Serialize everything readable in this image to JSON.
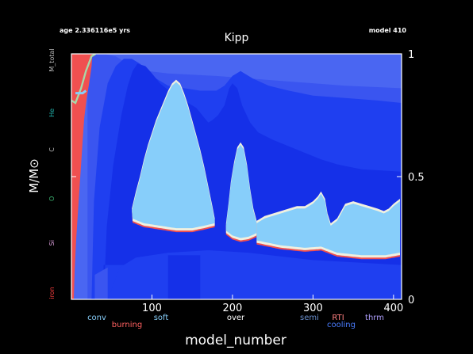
{
  "header": {
    "age_text": "age 2.336116e5 yrs",
    "title": "Kipp",
    "model_text": "model 410"
  },
  "chart_data": {
    "type": "area",
    "title": "Kipp",
    "xlabel": "model_number",
    "ylabel": "M/M⊙",
    "xlim": [
      0,
      410
    ],
    "ylim": [
      0,
      1
    ],
    "x_ticks": [
      100,
      200,
      300,
      400
    ],
    "y_ticks_right": [
      0,
      0.5,
      1
    ],
    "legend": {
      "placement": "bottom",
      "items": [
        {
          "label": "conv",
          "color": "#87cefa"
        },
        {
          "label": "burning",
          "color": "#ff6060"
        },
        {
          "label": "soft",
          "color": "#87cefa"
        },
        {
          "label": "over",
          "color": "#ffffff"
        },
        {
          "label": "semi",
          "color": "#6a8fcf"
        },
        {
          "label": "RTI",
          "color": "#ff8080"
        },
        {
          "label": "cooling",
          "color": "#4a7dff"
        },
        {
          "label": "thrm",
          "color": "#b0a0ff"
        }
      ]
    },
    "left_labels": [
      {
        "label": "M_total",
        "y": 1.0,
        "color": "#bbbbbb"
      },
      {
        "label": "He",
        "y": 0.76,
        "color": "#20b2aa"
      },
      {
        "label": "C",
        "y": 0.61,
        "color": "#bbbbbb"
      },
      {
        "label": "O",
        "y": 0.41,
        "color": "#3cb371"
      },
      {
        "label": "Si",
        "y": 0.23,
        "color": "#dda0dd"
      },
      {
        "label": "iron",
        "y": 0.0,
        "color": "#ff4040"
      }
    ],
    "colors": {
      "background": "#000000",
      "frame": "#ffffff",
      "burning": "#f05050",
      "layer_outer": "#4a66f2",
      "layer_mid": "#3a55f0",
      "layer_deep": "#1f3ff0",
      "core": "#1530e8",
      "convection": "#87cefa",
      "overshoot": "#f0f0e0",
      "he_line": "#a8d8a8"
    },
    "convective_regions": [
      {
        "name": "zone 1",
        "top": [
          [
            75,
            0.36
          ],
          [
            80,
            0.43
          ],
          [
            85,
            0.49
          ],
          [
            90,
            0.56
          ],
          [
            95,
            0.62
          ],
          [
            100,
            0.67
          ],
          [
            105,
            0.72
          ],
          [
            110,
            0.76
          ],
          [
            115,
            0.8
          ],
          [
            120,
            0.84
          ],
          [
            125,
            0.87
          ],
          [
            130,
            0.885
          ],
          [
            135,
            0.87
          ],
          [
            140,
            0.83
          ],
          [
            145,
            0.78
          ],
          [
            150,
            0.72
          ],
          [
            155,
            0.66
          ],
          [
            160,
            0.6
          ],
          [
            165,
            0.53
          ],
          [
            170,
            0.45
          ],
          [
            175,
            0.37
          ],
          [
            178,
            0.32
          ]
        ],
        "bottom": [
          [
            75,
            0.33
          ],
          [
            90,
            0.31
          ],
          [
            110,
            0.3
          ],
          [
            130,
            0.29
          ],
          [
            150,
            0.29
          ],
          [
            165,
            0.3
          ],
          [
            178,
            0.31
          ]
        ]
      },
      {
        "name": "zone 2",
        "top": [
          [
            192,
            0.3
          ],
          [
            195,
            0.38
          ],
          [
            198,
            0.47
          ],
          [
            202,
            0.55
          ],
          [
            206,
            0.61
          ],
          [
            210,
            0.63
          ],
          [
            214,
            0.61
          ],
          [
            218,
            0.54
          ],
          [
            222,
            0.44
          ],
          [
            226,
            0.36
          ],
          [
            230,
            0.31
          ]
        ],
        "bottom": [
          [
            192,
            0.28
          ],
          [
            200,
            0.26
          ],
          [
            210,
            0.25
          ],
          [
            220,
            0.255
          ],
          [
            230,
            0.27
          ]
        ]
      },
      {
        "name": "zone 3",
        "top": [
          [
            230,
            0.31
          ],
          [
            240,
            0.33
          ],
          [
            250,
            0.34
          ],
          [
            260,
            0.35
          ],
          [
            270,
            0.36
          ],
          [
            280,
            0.37
          ],
          [
            290,
            0.37
          ],
          [
            300,
            0.39
          ],
          [
            306,
            0.41
          ],
          [
            310,
            0.43
          ],
          [
            315,
            0.4
          ],
          [
            318,
            0.34
          ],
          [
            322,
            0.3
          ],
          [
            330,
            0.32
          ],
          [
            335,
            0.35
          ],
          [
            340,
            0.38
          ],
          [
            350,
            0.39
          ],
          [
            360,
            0.38
          ],
          [
            370,
            0.37
          ],
          [
            380,
            0.36
          ],
          [
            388,
            0.35
          ],
          [
            394,
            0.36
          ],
          [
            400,
            0.38
          ],
          [
            408,
            0.4
          ]
        ],
        "bottom": [
          [
            230,
            0.24
          ],
          [
            260,
            0.22
          ],
          [
            290,
            0.21
          ],
          [
            310,
            0.215
          ],
          [
            330,
            0.19
          ],
          [
            360,
            0.18
          ],
          [
            390,
            0.18
          ],
          [
            408,
            0.19
          ]
        ]
      }
    ]
  }
}
